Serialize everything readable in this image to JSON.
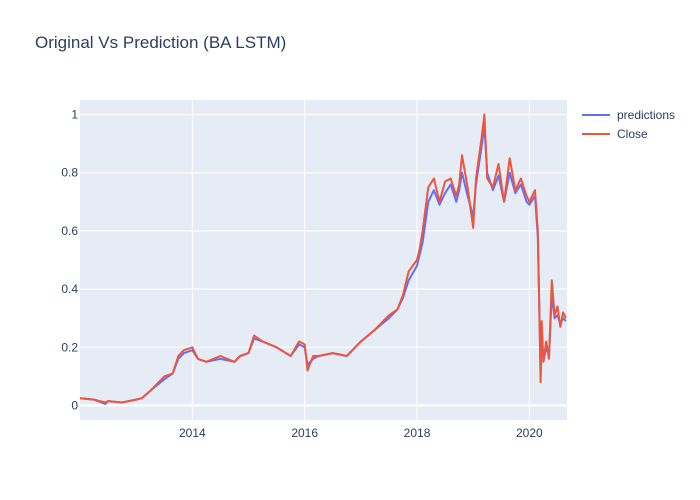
{
  "chart_data": {
    "type": "line",
    "title": "Original Vs Prediction (BA LSTM)",
    "xlabel": "",
    "ylabel": "",
    "xlim": [
      2012.0,
      2020.67
    ],
    "ylim": [
      -0.05,
      1.05
    ],
    "x_ticks": [
      2014,
      2016,
      2018,
      2020
    ],
    "x_tick_labels": [
      "2014",
      "2016",
      "2018",
      "2020"
    ],
    "y_ticks": [
      0,
      0.2,
      0.4,
      0.6,
      0.8,
      1.0
    ],
    "y_tick_labels": [
      "0",
      "0.2",
      "0.4",
      "0.6",
      "0.8",
      "1"
    ],
    "grid": true,
    "legend_position": "top-right",
    "x": [
      2012.0,
      2012.25,
      2012.45,
      2012.5,
      2012.75,
      2013.0,
      2013.1,
      2013.25,
      2013.5,
      2013.65,
      2013.75,
      2013.85,
      2014.0,
      2014.1,
      2014.25,
      2014.5,
      2014.75,
      2014.85,
      2015.0,
      2015.1,
      2015.25,
      2015.5,
      2015.75,
      2015.9,
      2016.0,
      2016.05,
      2016.15,
      2016.25,
      2016.5,
      2016.75,
      2016.9,
      2017.0,
      2017.25,
      2017.5,
      2017.65,
      2017.75,
      2017.85,
      2018.0,
      2018.05,
      2018.1,
      2018.2,
      2018.3,
      2018.4,
      2018.5,
      2018.6,
      2018.7,
      2018.75,
      2018.8,
      2018.9,
      2019.0,
      2019.05,
      2019.15,
      2019.2,
      2019.25,
      2019.35,
      2019.45,
      2019.55,
      2019.65,
      2019.75,
      2019.85,
      2019.95,
      2020.0,
      2020.1,
      2020.15,
      2020.18,
      2020.2,
      2020.22,
      2020.25,
      2020.3,
      2020.35,
      2020.4,
      2020.45,
      2020.5,
      2020.55,
      2020.6,
      2020.65
    ],
    "series": [
      {
        "name": "predictions",
        "color": "#636efa",
        "values": [
          0.025,
          0.02,
          0.005,
          0.015,
          0.01,
          0.02,
          0.025,
          0.05,
          0.09,
          0.11,
          0.16,
          0.18,
          0.19,
          0.16,
          0.15,
          0.16,
          0.15,
          0.17,
          0.18,
          0.23,
          0.22,
          0.2,
          0.17,
          0.21,
          0.2,
          0.14,
          0.16,
          0.17,
          0.18,
          0.17,
          0.2,
          0.22,
          0.26,
          0.3,
          0.33,
          0.37,
          0.43,
          0.48,
          0.52,
          0.56,
          0.7,
          0.74,
          0.69,
          0.73,
          0.76,
          0.7,
          0.74,
          0.8,
          0.72,
          0.65,
          0.76,
          0.89,
          0.96,
          0.8,
          0.74,
          0.79,
          0.7,
          0.8,
          0.73,
          0.76,
          0.7,
          0.69,
          0.72,
          0.58,
          0.3,
          0.1,
          0.26,
          0.15,
          0.2,
          0.17,
          0.38,
          0.3,
          0.31,
          0.28,
          0.3,
          0.29
        ]
      },
      {
        "name": "Close",
        "color": "#ef553b",
        "values": [
          0.025,
          0.02,
          0.01,
          0.015,
          0.01,
          0.02,
          0.025,
          0.05,
          0.1,
          0.11,
          0.17,
          0.19,
          0.2,
          0.16,
          0.15,
          0.17,
          0.15,
          0.17,
          0.18,
          0.24,
          0.22,
          0.2,
          0.17,
          0.22,
          0.21,
          0.12,
          0.17,
          0.17,
          0.18,
          0.17,
          0.2,
          0.22,
          0.26,
          0.31,
          0.33,
          0.38,
          0.46,
          0.5,
          0.54,
          0.6,
          0.75,
          0.78,
          0.7,
          0.77,
          0.78,
          0.72,
          0.76,
          0.86,
          0.75,
          0.61,
          0.78,
          0.92,
          1.0,
          0.78,
          0.75,
          0.83,
          0.7,
          0.85,
          0.74,
          0.78,
          0.72,
          0.7,
          0.74,
          0.6,
          0.3,
          0.08,
          0.29,
          0.15,
          0.22,
          0.16,
          0.43,
          0.31,
          0.34,
          0.27,
          0.32,
          0.3
        ]
      }
    ]
  }
}
